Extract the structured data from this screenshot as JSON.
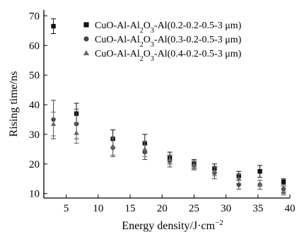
{
  "chart_data": {
    "type": "scatter",
    "xlabel": "Energy density/J·cm",
    "xlabel_sup": "−2",
    "ylabel": "Rising time/ns",
    "xlim": [
      1.5,
      40
    ],
    "ylim": [
      8.5,
      72
    ],
    "x_ticks": [
      5,
      10,
      15,
      20,
      25,
      30,
      35,
      40
    ],
    "y_ticks": [
      10,
      20,
      30,
      40,
      50,
      60,
      70
    ],
    "grid": false,
    "legend_position": "top-right",
    "series": [
      {
        "name": "CuO-Al-Al2O3-Al(0.2-0.2-0.5-3 μm)",
        "legend_parts": [
          "CuO-Al-Al",
          "2",
          "O",
          "3",
          "-Al(0.2-0.2-0.5-3 μm)"
        ],
        "marker": "square",
        "x": [
          3.0,
          6.6,
          12.3,
          17.3,
          21.2,
          25.0,
          28.2,
          32.0,
          35.3,
          39.0
        ],
        "y": [
          66.5,
          37.0,
          28.5,
          27.0,
          22.0,
          20.0,
          18.5,
          16.0,
          17.5,
          14.0
        ],
        "err": [
          2.5,
          3.5,
          3.0,
          3.0,
          2.0,
          1.5,
          1.5,
          1.5,
          2.0,
          1.0
        ]
      },
      {
        "name": "CuO-Al-Al2O3-Al(0.3-0.2-0.5-3 μm)",
        "legend_parts": [
          "CuO-Al-Al",
          "2",
          "O",
          "3",
          "-Al(0.3-0.2-0.5-3 μm)"
        ],
        "marker": "circle",
        "x": [
          3.0,
          6.6,
          12.3,
          17.3,
          21.2,
          25.0,
          28.2,
          32.0,
          35.3,
          39.0
        ],
        "y": [
          35.0,
          33.5,
          25.5,
          24.0,
          21.0,
          19.5,
          17.0,
          13.0,
          13.0,
          11.5
        ],
        "err": [
          6.5,
          5.0,
          3.0,
          2.5,
          2.0,
          1.5,
          2.0,
          1.5,
          1.5,
          1.0
        ]
      },
      {
        "name": "CuO-Al-Al2O3-Al(0.4-0.2-0.5-3 μm)",
        "legend_parts": [
          "CuO-Al-Al",
          "2",
          "O",
          "3",
          "-Al(0.4-0.2-0.5-3 μm)"
        ],
        "marker": "triangle",
        "x": [
          3.0,
          6.6,
          12.3,
          17.3,
          21.2,
          25.0,
          28.2,
          32.0,
          35.3,
          39.0
        ],
        "y": [
          33.5,
          30.5,
          26.0,
          25.0,
          21.5,
          19.5,
          17.5,
          15.0,
          13.0,
          10.5
        ],
        "err": [
          4.0,
          3.5,
          3.0,
          2.5,
          1.5,
          1.5,
          1.5,
          1.5,
          1.5,
          1.0
        ]
      }
    ]
  }
}
